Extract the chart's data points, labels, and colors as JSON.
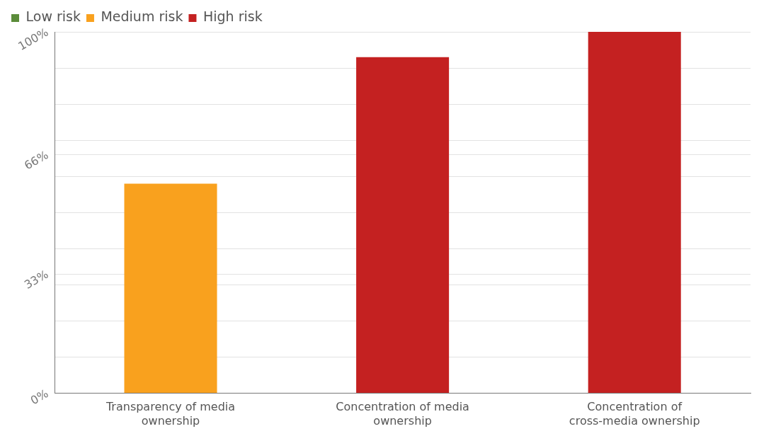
{
  "chart_data": {
    "type": "bar",
    "categories": [
      "Transparency of media ownership",
      "Concentration of media ownership",
      "Concentration of cross-media ownership"
    ],
    "series": [
      {
        "name": "Low risk",
        "color": "#5b8c3a",
        "values": [
          null,
          null,
          null
        ]
      },
      {
        "name": "Medium risk",
        "color": "#f9a11e",
        "values": [
          58,
          null,
          null
        ]
      },
      {
        "name": "High risk",
        "color": "#c42121",
        "values": [
          null,
          93,
          100
        ]
      }
    ],
    "stacked": true,
    "ylim": [
      0,
      100
    ],
    "yticks": [
      {
        "value": 0,
        "label": "0%"
      },
      {
        "value": 10,
        "label": null
      },
      {
        "value": 20,
        "label": null
      },
      {
        "value": 30,
        "label": null
      },
      {
        "value": 33,
        "label": "33%"
      },
      {
        "value": 40,
        "label": null
      },
      {
        "value": 50,
        "label": null
      },
      {
        "value": 60,
        "label": null
      },
      {
        "value": 66,
        "label": "66%"
      },
      {
        "value": 70,
        "label": null
      },
      {
        "value": 80,
        "label": null
      },
      {
        "value": 90,
        "label": null
      },
      {
        "value": 100,
        "label": "100%"
      }
    ],
    "grid": "y",
    "legend": "top left"
  }
}
